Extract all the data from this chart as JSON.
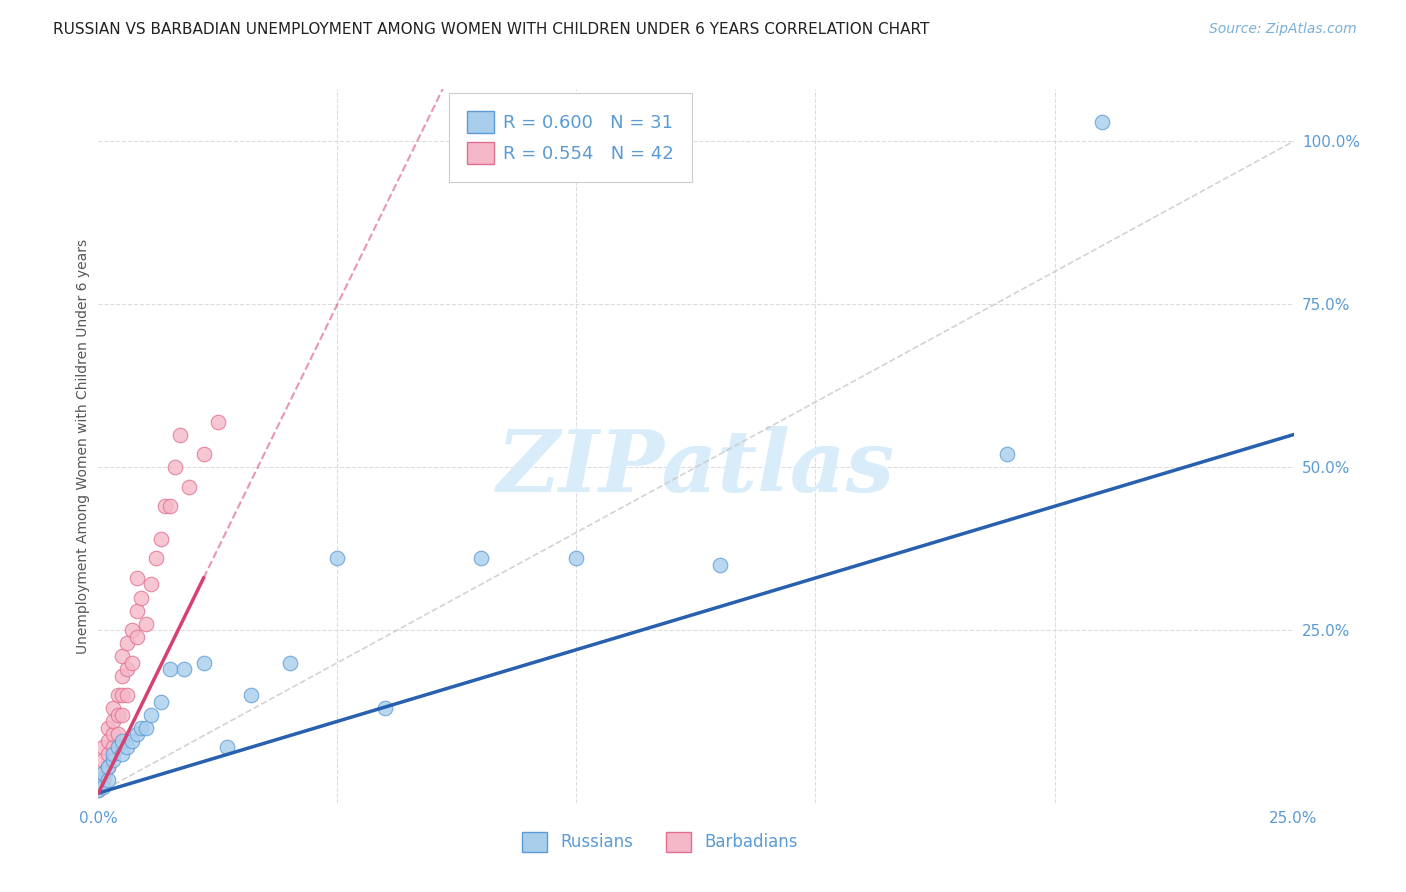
{
  "title": "RUSSIAN VS BARBADIAN UNEMPLOYMENT AMONG WOMEN WITH CHILDREN UNDER 6 YEARS CORRELATION CHART",
  "source": "Source: ZipAtlas.com",
  "ylabel": "Unemployment Among Women with Children Under 6 years",
  "xlim": [
    0.0,
    0.25
  ],
  "ylim": [
    -0.015,
    1.08
  ],
  "russian_color": "#A8CEEC",
  "barbadian_color": "#F5B8C8",
  "russian_edge_color": "#5B9BD5",
  "barbadian_edge_color": "#E07090",
  "regression_russian_color": "#2860B0",
  "regression_barbadian_color": "#D84070",
  "diag_line_color": "#C8C8C8",
  "watermark_color": "#D8ECFA",
  "legend_r_russian": "R = 0.600",
  "legend_n_russian": "N = 31",
  "legend_r_barbadian": "R = 0.554",
  "legend_n_barbadian": "N = 42",
  "russian_x": [
    0.0,
    0.0,
    0.001,
    0.001,
    0.002,
    0.002,
    0.003,
    0.003,
    0.004,
    0.005,
    0.005,
    0.006,
    0.007,
    0.008,
    0.009,
    0.01,
    0.011,
    0.013,
    0.015,
    0.018,
    0.022,
    0.027,
    0.032,
    0.04,
    0.05,
    0.06,
    0.08,
    0.1,
    0.13,
    0.19,
    0.21
  ],
  "russian_y": [
    0.005,
    0.02,
    0.01,
    0.03,
    0.02,
    0.04,
    0.05,
    0.06,
    0.07,
    0.06,
    0.08,
    0.07,
    0.08,
    0.09,
    0.1,
    0.1,
    0.12,
    0.14,
    0.19,
    0.19,
    0.2,
    0.07,
    0.15,
    0.2,
    0.36,
    0.13,
    0.36,
    0.36,
    0.35,
    0.52,
    1.03
  ],
  "barbadian_x": [
    0.0,
    0.0,
    0.0,
    0.001,
    0.001,
    0.001,
    0.001,
    0.002,
    0.002,
    0.002,
    0.002,
    0.003,
    0.003,
    0.003,
    0.003,
    0.004,
    0.004,
    0.004,
    0.005,
    0.005,
    0.005,
    0.005,
    0.006,
    0.006,
    0.006,
    0.007,
    0.007,
    0.008,
    0.008,
    0.008,
    0.009,
    0.01,
    0.011,
    0.012,
    0.013,
    0.014,
    0.015,
    0.016,
    0.017,
    0.019,
    0.022,
    0.025
  ],
  "barbadian_y": [
    0.005,
    0.015,
    0.025,
    0.02,
    0.03,
    0.05,
    0.07,
    0.04,
    0.06,
    0.08,
    0.1,
    0.07,
    0.09,
    0.11,
    0.13,
    0.09,
    0.12,
    0.15,
    0.12,
    0.15,
    0.18,
    0.21,
    0.15,
    0.19,
    0.23,
    0.2,
    0.25,
    0.24,
    0.28,
    0.33,
    0.3,
    0.26,
    0.32,
    0.36,
    0.39,
    0.44,
    0.44,
    0.5,
    0.55,
    0.47,
    0.52,
    0.57
  ],
  "grid_color": "#DCDCDC",
  "background_color": "#FFFFFF",
  "title_fontsize": 11,
  "source_fontsize": 10,
  "axis_fontsize": 11,
  "label_fontsize": 10,
  "marker_size": 110
}
